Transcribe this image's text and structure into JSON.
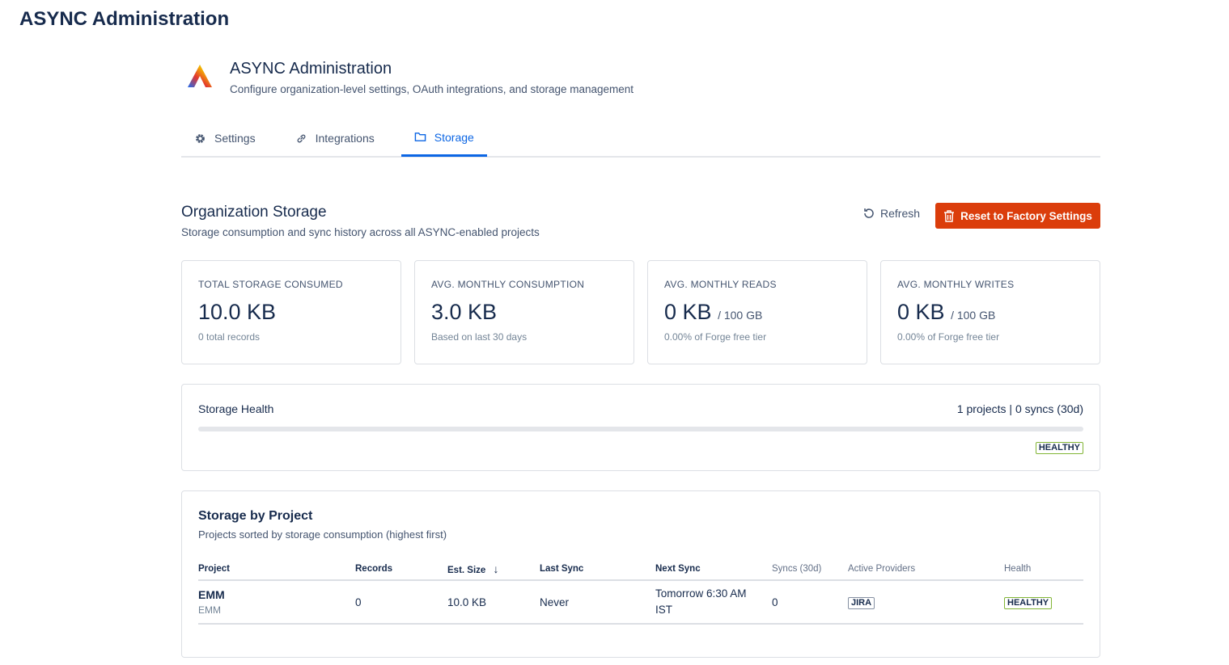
{
  "app_title": "ASYNC Administration",
  "header": {
    "title": "ASYNC Administration",
    "subtitle": "Configure organization-level settings, OAuth integrations, and storage management"
  },
  "tabs": [
    {
      "label": "Settings",
      "icon": "gear-icon"
    },
    {
      "label": "Integrations",
      "icon": "link-icon"
    },
    {
      "label": "Storage",
      "icon": "folder-icon",
      "active": true
    }
  ],
  "section": {
    "title": "Organization Storage",
    "subtitle": "Storage consumption and sync history across all ASYNC-enabled projects",
    "refresh_label": "Refresh",
    "reset_label": "Reset to Factory Settings"
  },
  "cards": [
    {
      "label": "TOTAL STORAGE CONSUMED",
      "value": "10.0 KB",
      "suffix": "",
      "note": "0 total records"
    },
    {
      "label": "AVG. MONTHLY CONSUMPTION",
      "value": "3.0 KB",
      "suffix": "",
      "note": "Based on last 30 days"
    },
    {
      "label": "AVG. MONTHLY READS",
      "value": "0 KB",
      "suffix": "/ 100 GB",
      "note": "0.00% of Forge free tier"
    },
    {
      "label": "AVG. MONTHLY WRITES",
      "value": "0 KB",
      "suffix": "/ 100 GB",
      "note": "0.00% of Forge free tier"
    }
  ],
  "health": {
    "title": "Storage Health",
    "summary": "1 projects | 0 syncs (30d)",
    "progress_percent": 0,
    "status": "HEALTHY"
  },
  "projects": {
    "title": "Storage by Project",
    "subtitle": "Projects sorted by storage consumption (highest first)",
    "columns": [
      "Project",
      "Records",
      "Est. Size",
      "Last Sync",
      "Next Sync",
      "Syncs (30d)",
      "Active Providers",
      "Health"
    ],
    "rows": [
      {
        "name": "EMM",
        "key": "EMM",
        "records": "0",
        "size": "10.0 KB",
        "last_sync": "Never",
        "next_sync": "Tomorrow 6:30 AM IST",
        "syncs": "0",
        "provider": "JIRA",
        "health": "HEALTHY"
      }
    ]
  },
  "colors": {
    "accent": "#0c66e4",
    "danger": "#db3d0b",
    "healthy": "#82b536"
  }
}
